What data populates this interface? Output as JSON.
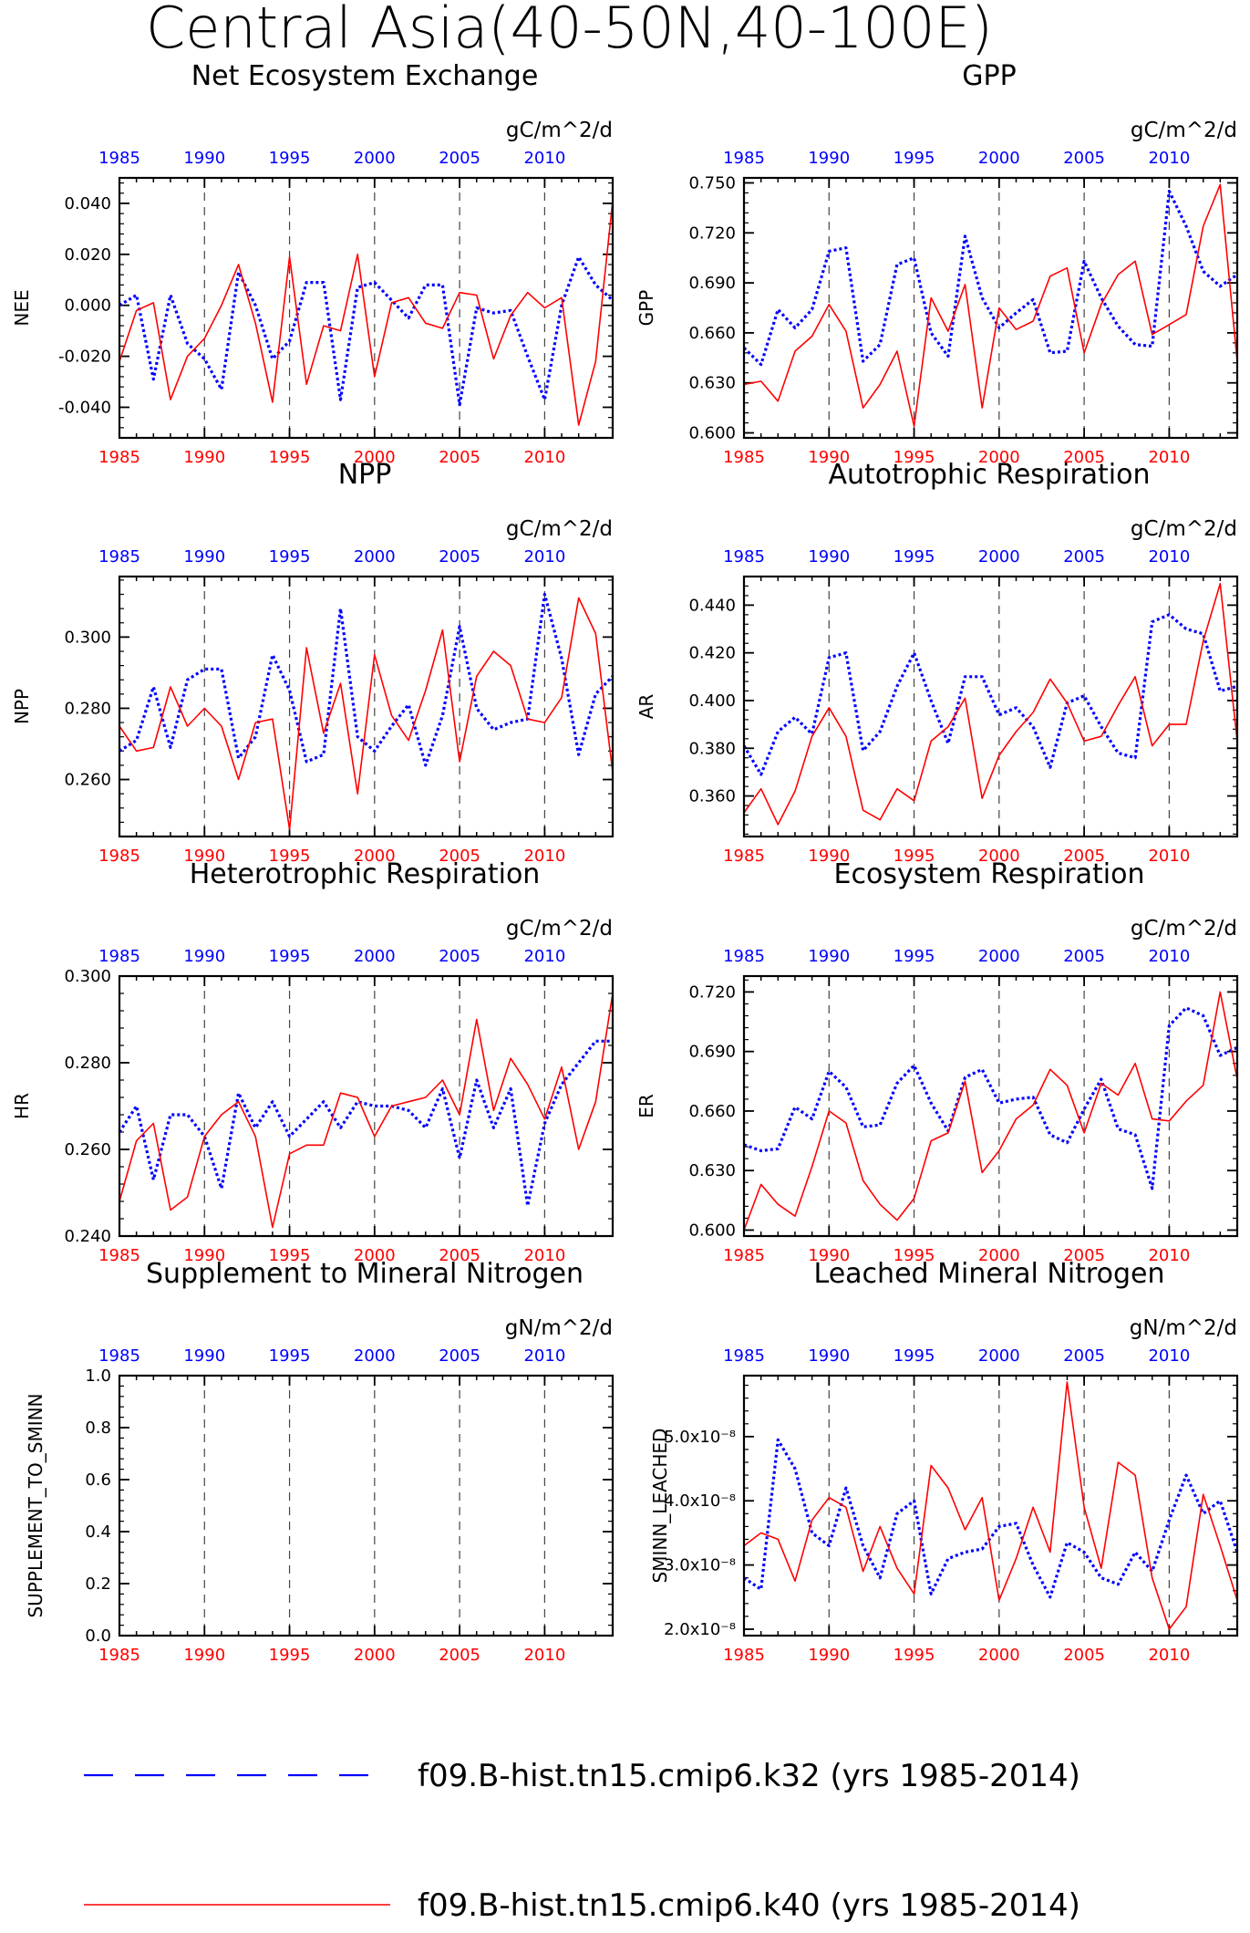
{
  "title": "Central Asia(40-50N,40-100E)",
  "colors": {
    "run_k32": "#0000ff",
    "run_k40": "#ff0000",
    "axis": "#000000"
  },
  "legend": {
    "items": [
      {
        "label": "f09.B-hist.tn15.cmip6.k32 (yrs 1985-2014)",
        "color": "#0000ff",
        "style": "dashed"
      },
      {
        "label": "f09.B-hist.tn15.cmip6.k40 (yrs 1985-2014)",
        "color": "#ff0000",
        "style": "solid"
      }
    ]
  },
  "chart_data": [
    {
      "type": "line",
      "title": "Net Ecosystem Exchange",
      "units": "gC/m^2/d",
      "ylabel": "NEE",
      "ylim": [
        -0.052,
        0.05
      ],
      "yticks": [
        -0.04,
        -0.02,
        0.0,
        0.02,
        0.04
      ],
      "ytick_labels": [
        "-0.040",
        "-0.020",
        "0.000",
        "0.020",
        "0.040"
      ],
      "x": [
        1985,
        1986,
        1987,
        1988,
        1989,
        1990,
        1991,
        1992,
        1993,
        1994,
        1995,
        1996,
        1997,
        1998,
        1999,
        2000,
        2001,
        2002,
        2003,
        2004,
        2005,
        2006,
        2007,
        2008,
        2009,
        2010,
        2011,
        2012,
        2013,
        2014
      ],
      "xlim": [
        1985,
        2014
      ],
      "xticks": [
        1985,
        1990,
        1995,
        2000,
        2005,
        2010
      ],
      "grid_x": [
        1990,
        1995,
        2000,
        2005,
        2010
      ],
      "series": [
        {
          "name": "f09.B-hist.tn15.cmip6.k32",
          "style": "dashed",
          "color": "#0000ff",
          "values": [
            0.0,
            0.004,
            -0.029,
            0.004,
            -0.015,
            -0.021,
            -0.033,
            0.013,
            0.0,
            -0.021,
            -0.014,
            0.009,
            0.009,
            -0.037,
            0.007,
            0.009,
            0.002,
            -0.005,
            0.008,
            0.008,
            -0.039,
            -0.001,
            -0.003,
            -0.002,
            -0.02,
            -0.037,
            0.0,
            0.019,
            0.008,
            0.002
          ]
        },
        {
          "name": "f09.B-hist.tn15.cmip6.k40",
          "style": "solid",
          "color": "#ff0000",
          "values": [
            -0.022,
            -0.002,
            0.001,
            -0.037,
            -0.02,
            -0.013,
            0.0,
            0.016,
            -0.007,
            -0.038,
            0.019,
            -0.031,
            -0.008,
            -0.01,
            0.02,
            -0.028,
            0.001,
            0.003,
            -0.007,
            -0.009,
            0.005,
            0.004,
            -0.021,
            -0.004,
            0.005,
            -0.001,
            0.003,
            -0.047,
            -0.022,
            0.041
          ]
        }
      ]
    },
    {
      "type": "line",
      "title": "GPP",
      "units": "gC/m^2/d",
      "ylabel": "GPP",
      "ylim": [
        0.597,
        0.753
      ],
      "yticks": [
        0.6,
        0.63,
        0.66,
        0.69,
        0.72,
        0.75
      ],
      "ytick_labels": [
        "0.600",
        "0.630",
        "0.660",
        "0.690",
        "0.720",
        "0.750"
      ],
      "x": [
        1985,
        1986,
        1987,
        1988,
        1989,
        1990,
        1991,
        1992,
        1993,
        1994,
        1995,
        1996,
        1997,
        1998,
        1999,
        2000,
        2001,
        2002,
        2003,
        2004,
        2005,
        2006,
        2007,
        2008,
        2009,
        2010,
        2011,
        2012,
        2013,
        2014
      ],
      "xlim": [
        1985,
        2014
      ],
      "xticks": [
        1985,
        1990,
        1995,
        2000,
        2005,
        2010
      ],
      "grid_x": [
        1990,
        1995,
        2000,
        2005,
        2010
      ],
      "series": [
        {
          "name": "f09.B-hist.tn15.cmip6.k32",
          "style": "dashed",
          "color": "#0000ff",
          "values": [
            0.651,
            0.641,
            0.674,
            0.663,
            0.674,
            0.709,
            0.711,
            0.643,
            0.653,
            0.701,
            0.705,
            0.66,
            0.646,
            0.718,
            0.681,
            0.663,
            0.672,
            0.68,
            0.648,
            0.649,
            0.703,
            0.681,
            0.664,
            0.653,
            0.652,
            0.745,
            0.724,
            0.697,
            0.688,
            0.695
          ]
        },
        {
          "name": "f09.B-hist.tn15.cmip6.k40",
          "style": "solid",
          "color": "#ff0000",
          "values": [
            0.629,
            0.631,
            0.619,
            0.649,
            0.658,
            0.677,
            0.661,
            0.615,
            0.629,
            0.649,
            0.604,
            0.681,
            0.661,
            0.689,
            0.615,
            0.675,
            0.662,
            0.667,
            0.694,
            0.699,
            0.648,
            0.677,
            0.695,
            0.703,
            0.659,
            0.665,
            0.671,
            0.724,
            0.749,
            0.643
          ]
        }
      ]
    },
    {
      "type": "line",
      "title": "NPP",
      "units": "gC/m^2/d",
      "ylabel": "NPP",
      "ylim": [
        0.244,
        0.317
      ],
      "yticks": [
        0.26,
        0.28,
        0.3
      ],
      "ytick_labels": [
        "0.260",
        "0.280",
        "0.300"
      ],
      "x": [
        1985,
        1986,
        1987,
        1988,
        1989,
        1990,
        1991,
        1992,
        1993,
        1994,
        1995,
        1996,
        1997,
        1998,
        1999,
        2000,
        2001,
        2002,
        2003,
        2004,
        2005,
        2006,
        2007,
        2008,
        2009,
        2010,
        2011,
        2012,
        2013,
        2014
      ],
      "xlim": [
        1985,
        2014
      ],
      "xticks": [
        1985,
        1990,
        1995,
        2000,
        2005,
        2010
      ],
      "grid_x": [
        1990,
        1995,
        2000,
        2005,
        2010
      ],
      "series": [
        {
          "name": "f09.B-hist.tn15.cmip6.k32",
          "style": "dashed",
          "color": "#0000ff",
          "values": [
            0.268,
            0.271,
            0.286,
            0.269,
            0.288,
            0.291,
            0.291,
            0.266,
            0.272,
            0.295,
            0.285,
            0.265,
            0.267,
            0.308,
            0.272,
            0.268,
            0.275,
            0.281,
            0.264,
            0.278,
            0.303,
            0.28,
            0.274,
            0.276,
            0.277,
            0.312,
            0.294,
            0.267,
            0.284,
            0.289
          ]
        },
        {
          "name": "f09.B-hist.tn15.cmip6.k40",
          "style": "solid",
          "color": "#ff0000",
          "values": [
            0.275,
            0.268,
            0.269,
            0.286,
            0.275,
            0.28,
            0.275,
            0.26,
            0.276,
            0.277,
            0.246,
            0.297,
            0.273,
            0.287,
            0.256,
            0.295,
            0.278,
            0.271,
            0.285,
            0.302,
            0.265,
            0.289,
            0.296,
            0.292,
            0.277,
            0.276,
            0.283,
            0.311,
            0.301,
            0.262
          ]
        }
      ]
    },
    {
      "type": "line",
      "title": "Autotrophic Respiration",
      "units": "gC/m^2/d",
      "ylabel": "AR",
      "ylim": [
        0.343,
        0.452
      ],
      "yticks": [
        0.36,
        0.38,
        0.4,
        0.42,
        0.44
      ],
      "ytick_labels": [
        "0.360",
        "0.380",
        "0.400",
        "0.420",
        "0.440"
      ],
      "x": [
        1985,
        1986,
        1987,
        1988,
        1989,
        1990,
        1991,
        1992,
        1993,
        1994,
        1995,
        1996,
        1997,
        1998,
        1999,
        2000,
        2001,
        2002,
        2003,
        2004,
        2005,
        2006,
        2007,
        2008,
        2009,
        2010,
        2011,
        2012,
        2013,
        2014
      ],
      "xlim": [
        1985,
        2014
      ],
      "xticks": [
        1985,
        1990,
        1995,
        2000,
        2005,
        2010
      ],
      "grid_x": [
        1990,
        1995,
        2000,
        2005,
        2010
      ],
      "series": [
        {
          "name": "f09.B-hist.tn15.cmip6.k32",
          "style": "dashed",
          "color": "#0000ff",
          "values": [
            0.381,
            0.369,
            0.387,
            0.393,
            0.386,
            0.418,
            0.42,
            0.379,
            0.387,
            0.406,
            0.42,
            0.4,
            0.382,
            0.41,
            0.41,
            0.394,
            0.397,
            0.389,
            0.372,
            0.399,
            0.402,
            0.389,
            0.378,
            0.376,
            0.433,
            0.436,
            0.43,
            0.428,
            0.404,
            0.406
          ]
        },
        {
          "name": "f09.B-hist.tn15.cmip6.k40",
          "style": "solid",
          "color": "#ff0000",
          "values": [
            0.353,
            0.363,
            0.348,
            0.362,
            0.385,
            0.397,
            0.385,
            0.354,
            0.35,
            0.363,
            0.358,
            0.383,
            0.389,
            0.401,
            0.359,
            0.377,
            0.387,
            0.395,
            0.409,
            0.399,
            0.383,
            0.385,
            0.398,
            0.41,
            0.381,
            0.39,
            0.39,
            0.425,
            0.449,
            0.383
          ]
        }
      ]
    },
    {
      "type": "line",
      "title": "Heterotrophic Respiration",
      "units": "gC/m^2/d",
      "ylabel": "HR",
      "ylim": [
        0.24,
        0.3
      ],
      "yticks": [
        0.24,
        0.26,
        0.28,
        0.3
      ],
      "ytick_labels": [
        "0.240",
        "0.260",
        "0.280",
        "0.300"
      ],
      "x": [
        1985,
        1986,
        1987,
        1988,
        1989,
        1990,
        1991,
        1992,
        1993,
        1994,
        1995,
        1996,
        1997,
        1998,
        1999,
        2000,
        2001,
        2002,
        2003,
        2004,
        2005,
        2006,
        2007,
        2008,
        2009,
        2010,
        2011,
        2012,
        2013,
        2014
      ],
      "xlim": [
        1985,
        2014
      ],
      "xticks": [
        1985,
        1990,
        1995,
        2000,
        2005,
        2010
      ],
      "grid_x": [
        1990,
        1995,
        2000,
        2005,
        2010
      ],
      "series": [
        {
          "name": "f09.B-hist.tn15.cmip6.k32",
          "style": "dashed",
          "color": "#0000ff",
          "values": [
            0.264,
            0.27,
            0.253,
            0.268,
            0.268,
            0.263,
            0.251,
            0.273,
            0.265,
            0.271,
            0.263,
            0.267,
            0.271,
            0.265,
            0.271,
            0.27,
            0.27,
            0.269,
            0.265,
            0.274,
            0.258,
            0.276,
            0.265,
            0.274,
            0.247,
            0.266,
            0.275,
            0.28,
            0.285,
            0.285
          ]
        },
        {
          "name": "f09.B-hist.tn15.cmip6.k40",
          "style": "solid",
          "color": "#ff0000",
          "values": [
            0.248,
            0.262,
            0.266,
            0.246,
            0.249,
            0.263,
            0.268,
            0.271,
            0.263,
            0.242,
            0.259,
            0.261,
            0.261,
            0.273,
            0.272,
            0.263,
            0.27,
            0.271,
            0.272,
            0.276,
            0.268,
            0.29,
            0.269,
            0.281,
            0.275,
            0.267,
            0.279,
            0.26,
            0.271,
            0.296
          ]
        }
      ]
    },
    {
      "type": "line",
      "title": "Ecosystem Respiration",
      "units": "gC/m^2/d",
      "ylabel": "ER",
      "ylim": [
        0.597,
        0.728
      ],
      "yticks": [
        0.6,
        0.63,
        0.66,
        0.69,
        0.72
      ],
      "ytick_labels": [
        "0.600",
        "0.630",
        "0.660",
        "0.690",
        "0.720"
      ],
      "x": [
        1985,
        1986,
        1987,
        1988,
        1989,
        1990,
        1991,
        1992,
        1993,
        1994,
        1995,
        1996,
        1997,
        1998,
        1999,
        2000,
        2001,
        2002,
        2003,
        2004,
        2005,
        2006,
        2007,
        2008,
        2009,
        2010,
        2011,
        2012,
        2013,
        2014
      ],
      "xlim": [
        1985,
        2014
      ],
      "xticks": [
        1985,
        1990,
        1995,
        2000,
        2005,
        2010
      ],
      "grid_x": [
        1990,
        1995,
        2000,
        2005,
        2010
      ],
      "series": [
        {
          "name": "f09.B-hist.tn15.cmip6.k32",
          "style": "dashed",
          "color": "#0000ff",
          "values": [
            0.643,
            0.64,
            0.641,
            0.662,
            0.656,
            0.68,
            0.672,
            0.652,
            0.653,
            0.674,
            0.683,
            0.664,
            0.65,
            0.677,
            0.681,
            0.664,
            0.666,
            0.667,
            0.648,
            0.644,
            0.661,
            0.676,
            0.651,
            0.648,
            0.621,
            0.703,
            0.712,
            0.708,
            0.688,
            0.692
          ]
        },
        {
          "name": "f09.B-hist.tn15.cmip6.k40",
          "style": "solid",
          "color": "#ff0000",
          "values": [
            0.6,
            0.623,
            0.613,
            0.607,
            0.632,
            0.66,
            0.654,
            0.625,
            0.613,
            0.605,
            0.616,
            0.645,
            0.649,
            0.675,
            0.629,
            0.64,
            0.656,
            0.663,
            0.681,
            0.673,
            0.649,
            0.674,
            0.668,
            0.684,
            0.656,
            0.655,
            0.665,
            0.673,
            0.72,
            0.676
          ]
        }
      ]
    },
    {
      "type": "line",
      "title": "Supplement to Mineral Nitrogen",
      "units": "gN/m^2/d",
      "ylabel": "SUPPLEMENT_TO_SMINN",
      "ylim": [
        0,
        1
      ],
      "yticks": [
        0.0,
        0.2,
        0.4,
        0.6,
        0.8,
        1.0
      ],
      "ytick_labels": [
        "0.0",
        "0.2",
        "0.4",
        "0.6",
        "0.8",
        "1.0"
      ],
      "x": [
        1985,
        1986,
        1987,
        1988,
        1989,
        1990,
        1991,
        1992,
        1993,
        1994,
        1995,
        1996,
        1997,
        1998,
        1999,
        2000,
        2001,
        2002,
        2003,
        2004,
        2005,
        2006,
        2007,
        2008,
        2009,
        2010,
        2011,
        2012,
        2013,
        2014
      ],
      "xlim": [
        1985,
        2014
      ],
      "xticks": [
        1985,
        1990,
        1995,
        2000,
        2005,
        2010
      ],
      "grid_x": [
        1990,
        1995,
        2000,
        2005,
        2010
      ],
      "series": []
    },
    {
      "type": "line",
      "title": "Leached Mineral Nitrogen",
      "units": "gN/m^2/d",
      "ylabel": "SMINN_LEACHED",
      "ylim": [
        1.9,
        5.95
      ],
      "yticks": [
        2.0,
        3.0,
        4.0,
        5.0
      ],
      "ytick_labels": [
        "2.0x10⁻⁸",
        "3.0x10⁻⁸",
        "4.0x10⁻⁸",
        "5.0x10⁻⁸"
      ],
      "y_scale_note": "values x10^-8",
      "x": [
        1985,
        1986,
        1987,
        1988,
        1989,
        1990,
        1991,
        1992,
        1993,
        1994,
        1995,
        1996,
        1997,
        1998,
        1999,
        2000,
        2001,
        2002,
        2003,
        2004,
        2005,
        2006,
        2007,
        2008,
        2009,
        2010,
        2011,
        2012,
        2013,
        2014
      ],
      "xlim": [
        1985,
        2014
      ],
      "xticks": [
        1985,
        1990,
        1995,
        2000,
        2005,
        2010
      ],
      "grid_x": [
        1990,
        1995,
        2000,
        2005,
        2010
      ],
      "series": [
        {
          "name": "f09.B-hist.tn15.cmip6.k32",
          "style": "dashed",
          "color": "#0000ff",
          "values": [
            2.8,
            2.62,
            4.95,
            4.5,
            3.5,
            3.3,
            4.2,
            3.3,
            2.8,
            3.8,
            4.0,
            2.55,
            3.1,
            3.2,
            3.25,
            3.6,
            3.65,
            3.0,
            2.5,
            3.35,
            3.2,
            2.8,
            2.7,
            3.2,
            2.9,
            3.7,
            4.4,
            3.8,
            4.0,
            3.2
          ]
        },
        {
          "name": "f09.B-hist.tn15.cmip6.k40",
          "style": "solid",
          "color": "#ff0000",
          "values": [
            3.3,
            3.5,
            3.4,
            2.75,
            3.7,
            4.05,
            3.9,
            2.9,
            3.6,
            2.95,
            2.55,
            4.55,
            4.2,
            3.55,
            4.05,
            2.45,
            3.1,
            3.9,
            3.2,
            5.85,
            3.9,
            2.95,
            4.6,
            4.4,
            2.8,
            2.0,
            2.35,
            4.1,
            3.3,
            2.45
          ]
        }
      ]
    }
  ]
}
